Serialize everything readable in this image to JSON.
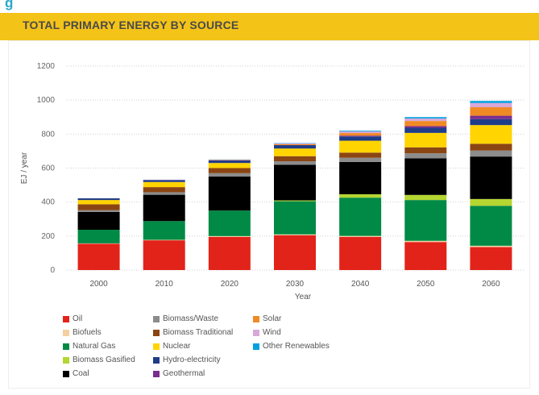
{
  "page": {
    "heading": "g",
    "section_title": "TOTAL PRIMARY ENERGY BY SOURCE"
  },
  "chart_data": {
    "type": "bar",
    "stacked": true,
    "title": "TOTAL PRIMARY ENERGY BY SOURCE",
    "xlabel": "Year",
    "ylabel": "EJ / year",
    "ylim": [
      0,
      1200
    ],
    "yticks": [
      0,
      200,
      400,
      600,
      800,
      1000,
      1200
    ],
    "grid": true,
    "legend_position": "bottom",
    "categories": [
      "2000",
      "2010",
      "2020",
      "2030",
      "2040",
      "2050",
      "2060"
    ],
    "series": [
      {
        "name": "Oil",
        "color": "#e2231a",
        "values": [
          155,
          175,
          195,
          205,
          195,
          165,
          135
        ]
      },
      {
        "name": "Biofuels",
        "color": "#f5cfa0",
        "values": [
          2,
          3,
          5,
          5,
          6,
          7,
          8
        ]
      },
      {
        "name": "Natural Gas",
        "color": "#008a45",
        "values": [
          80,
          110,
          150,
          195,
          225,
          240,
          235
        ]
      },
      {
        "name": "Biomass Gasified",
        "color": "#b5d531",
        "values": [
          0,
          0,
          0,
          5,
          20,
          30,
          40
        ]
      },
      {
        "name": "Coal",
        "color": "#000000",
        "values": [
          105,
          155,
          200,
          210,
          190,
          215,
          250
        ]
      },
      {
        "name": "Biomass/Waste",
        "color": "#8c8c8c",
        "values": [
          10,
          15,
          20,
          20,
          25,
          30,
          35
        ]
      },
      {
        "name": "Biomass Traditional",
        "color": "#8b4513",
        "values": [
          35,
          30,
          30,
          30,
          30,
          35,
          40
        ]
      },
      {
        "name": "Nuclear",
        "color": "#ffd400",
        "values": [
          25,
          30,
          30,
          45,
          70,
          85,
          110
        ]
      },
      {
        "name": "Hydro-electricity",
        "color": "#1f3c88",
        "values": [
          10,
          12,
          15,
          20,
          25,
          30,
          35
        ]
      },
      {
        "name": "Geothermal",
        "color": "#7b2d8e",
        "values": [
          0,
          0,
          0,
          0,
          5,
          10,
          20
        ]
      },
      {
        "name": "Solar",
        "color": "#f08a24",
        "values": [
          0,
          0,
          2,
          5,
          15,
          30,
          50
        ]
      },
      {
        "name": "Wind",
        "color": "#d8a8d8",
        "values": [
          0,
          2,
          3,
          5,
          10,
          15,
          25
        ]
      },
      {
        "name": "Other Renewables",
        "color": "#00a0e0",
        "values": [
          0,
          0,
          1,
          2,
          4,
          8,
          12
        ]
      }
    ],
    "legend_columns": [
      [
        "Oil",
        "Biofuels",
        "Natural Gas",
        "Biomass Gasified",
        "Coal"
      ],
      [
        "Biomass/Waste",
        "Biomass Traditional",
        "Nuclear",
        "Hydro-electricity",
        "Geothermal"
      ],
      [
        "Solar",
        "Wind",
        "Other Renewables"
      ]
    ]
  }
}
